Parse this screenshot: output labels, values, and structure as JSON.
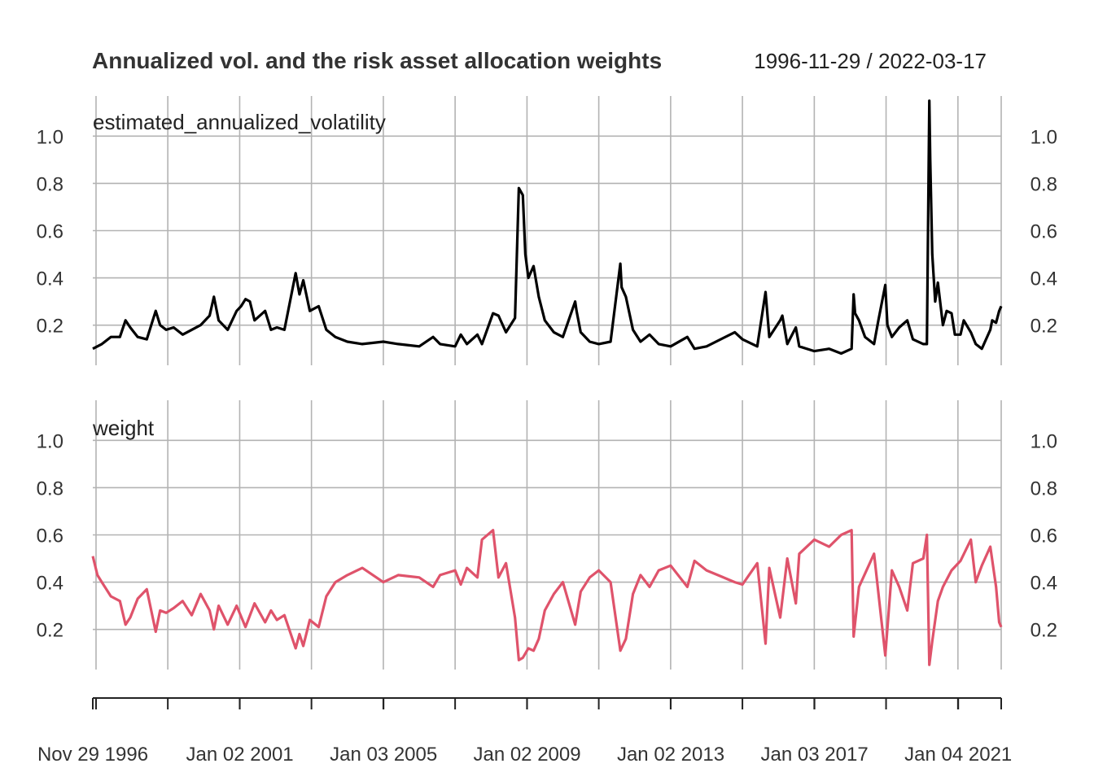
{
  "chart_data": {
    "type": "line",
    "title": "Annualized vol. and the risk asset allocation weights",
    "date_range": "1996-11-29 / 2022-03-17",
    "x_start": "1996-11-29",
    "x_end": "2022-03-17",
    "x_tick_labels": [
      "Nov 29 1996",
      "Jan 02 2001",
      "Jan 03 2005",
      "Jan 02 2009",
      "Jan 02 2013",
      "Jan 03 2017",
      "Jan 04 2021"
    ],
    "x_tick_dates": [
      "1996-11-29",
      "2001-01-02",
      "2005-01-03",
      "2009-01-02",
      "2013-01-02",
      "2017-01-03",
      "2021-01-04"
    ],
    "y_tick_labels": [
      "0.2",
      "0.4",
      "0.6",
      "0.8",
      "1.0"
    ],
    "grid": true,
    "panels": [
      {
        "label": "estimated_annualized_volatility",
        "color": "#000000",
        "ylim": [
          0.03,
          1.17
        ],
        "dates": [
          "1996-11-29",
          "1997-03-01",
          "1997-06-01",
          "1997-09-01",
          "1997-10-28",
          "1997-12-15",
          "1998-03-01",
          "1998-06-01",
          "1998-08-31",
          "1998-10-15",
          "1998-12-15",
          "1999-03-01",
          "1999-06-01",
          "1999-09-01",
          "1999-12-01",
          "2000-03-01",
          "2000-04-14",
          "2000-06-01",
          "2000-09-01",
          "2000-12-01",
          "2001-01-15",
          "2001-03-01",
          "2001-04-15",
          "2001-06-01",
          "2001-09-17",
          "2001-11-15",
          "2002-01-15",
          "2002-04-01",
          "2002-07-24",
          "2002-09-01",
          "2002-10-10",
          "2002-12-15",
          "2003-03-15",
          "2003-06-01",
          "2003-09-01",
          "2004-01-01",
          "2004-06-01",
          "2005-01-01",
          "2005-06-01",
          "2006-01-01",
          "2006-05-22",
          "2006-08-01",
          "2007-01-01",
          "2007-02-28",
          "2007-05-01",
          "2007-08-16",
          "2007-10-01",
          "2008-01-22",
          "2008-03-17",
          "2008-06-01",
          "2008-09-01",
          "2008-10-10",
          "2008-11-20",
          "2008-12-15",
          "2009-01-15",
          "2009-03-09",
          "2009-05-01",
          "2009-07-01",
          "2009-10-01",
          "2010-01-01",
          "2010-05-06",
          "2010-05-20",
          "2010-07-01",
          "2010-10-01",
          "2011-01-01",
          "2011-05-01",
          "2011-08-08",
          "2011-08-22",
          "2011-10-04",
          "2011-12-15",
          "2012-03-01",
          "2012-06-01",
          "2012-09-01",
          "2013-01-01",
          "2013-06-20",
          "2013-09-01",
          "2014-01-01",
          "2014-10-15",
          "2015-01-01",
          "2015-06-01",
          "2015-08-24",
          "2015-10-01",
          "2016-01-20",
          "2016-02-11",
          "2016-04-01",
          "2016-06-27",
          "2016-08-01",
          "2017-01-01",
          "2017-06-01",
          "2017-10-01",
          "2018-01-15",
          "2018-02-05",
          "2018-02-20",
          "2018-04-01",
          "2018-06-01",
          "2018-09-01",
          "2018-10-15",
          "2018-12-24",
          "2019-01-15",
          "2019-03-01",
          "2019-05-15",
          "2019-08-05",
          "2019-10-01",
          "2020-01-15",
          "2020-02-20",
          "2020-03-16",
          "2020-03-25",
          "2020-04-15",
          "2020-05-15",
          "2020-06-11",
          "2020-08-01",
          "2020-09-08",
          "2020-10-28",
          "2020-12-01",
          "2021-01-27",
          "2021-03-01",
          "2021-05-12",
          "2021-07-01",
          "2021-09-01",
          "2021-11-26",
          "2021-12-15",
          "2022-01-24",
          "2022-02-24",
          "2022-03-17"
        ],
        "values": [
          0.1,
          0.12,
          0.15,
          0.15,
          0.22,
          0.19,
          0.15,
          0.14,
          0.26,
          0.2,
          0.18,
          0.19,
          0.16,
          0.18,
          0.2,
          0.24,
          0.32,
          0.22,
          0.18,
          0.26,
          0.28,
          0.31,
          0.3,
          0.22,
          0.26,
          0.18,
          0.19,
          0.18,
          0.42,
          0.33,
          0.39,
          0.26,
          0.28,
          0.18,
          0.15,
          0.13,
          0.12,
          0.13,
          0.12,
          0.11,
          0.15,
          0.12,
          0.11,
          0.16,
          0.12,
          0.16,
          0.12,
          0.25,
          0.24,
          0.17,
          0.23,
          0.78,
          0.75,
          0.5,
          0.4,
          0.45,
          0.32,
          0.22,
          0.17,
          0.15,
          0.3,
          0.26,
          0.17,
          0.13,
          0.12,
          0.13,
          0.46,
          0.36,
          0.32,
          0.18,
          0.13,
          0.16,
          0.12,
          0.11,
          0.15,
          0.1,
          0.11,
          0.17,
          0.14,
          0.11,
          0.34,
          0.15,
          0.22,
          0.24,
          0.12,
          0.19,
          0.11,
          0.09,
          0.1,
          0.08,
          0.1,
          0.33,
          0.25,
          0.22,
          0.15,
          0.12,
          0.22,
          0.37,
          0.2,
          0.15,
          0.19,
          0.22,
          0.14,
          0.12,
          0.12,
          1.15,
          0.9,
          0.5,
          0.3,
          0.38,
          0.2,
          0.26,
          0.25,
          0.16,
          0.16,
          0.22,
          0.17,
          0.12,
          0.1,
          0.18,
          0.22,
          0.21,
          0.26,
          0.28
        ]
      },
      {
        "label": "weight",
        "color": "#DF536B",
        "ylim": [
          0.03,
          1.17
        ],
        "dates": [
          "1996-11-29",
          "1997-01-15",
          "1997-03-01",
          "1997-06-01",
          "1997-09-01",
          "1997-10-28",
          "1997-12-15",
          "1998-03-01",
          "1998-06-01",
          "1998-08-31",
          "1998-10-15",
          "1998-12-15",
          "1999-03-01",
          "1999-06-01",
          "1999-09-01",
          "1999-12-01",
          "2000-03-01",
          "2000-04-14",
          "2000-06-01",
          "2000-09-01",
          "2000-12-01",
          "2001-03-01",
          "2001-06-01",
          "2001-09-17",
          "2001-11-15",
          "2002-01-15",
          "2002-04-01",
          "2002-07-24",
          "2002-09-01",
          "2002-10-10",
          "2002-12-15",
          "2003-03-15",
          "2003-06-01",
          "2003-09-01",
          "2004-01-01",
          "2004-06-01",
          "2005-01-01",
          "2005-06-01",
          "2006-01-01",
          "2006-05-22",
          "2006-08-01",
          "2007-01-01",
          "2007-02-28",
          "2007-05-01",
          "2007-08-16",
          "2007-10-01",
          "2008-01-22",
          "2008-03-17",
          "2008-06-01",
          "2008-09-01",
          "2008-10-10",
          "2008-11-20",
          "2009-01-15",
          "2009-03-09",
          "2009-05-01",
          "2009-07-01",
          "2009-10-01",
          "2010-01-01",
          "2010-05-06",
          "2010-07-01",
          "2010-10-01",
          "2011-01-01",
          "2011-05-01",
          "2011-08-08",
          "2011-10-04",
          "2011-12-15",
          "2012-03-01",
          "2012-06-01",
          "2012-09-01",
          "2013-01-01",
          "2013-06-20",
          "2013-09-01",
          "2014-01-01",
          "2014-10-15",
          "2015-01-01",
          "2015-06-01",
          "2015-08-24",
          "2015-10-01",
          "2016-01-20",
          "2016-04-01",
          "2016-06-27",
          "2016-08-01",
          "2017-01-01",
          "2017-06-01",
          "2017-10-01",
          "2018-01-15",
          "2018-02-05",
          "2018-04-01",
          "2018-09-01",
          "2018-12-24",
          "2019-03-01",
          "2019-05-15",
          "2019-08-05",
          "2019-10-01",
          "2020-01-15",
          "2020-02-20",
          "2020-03-16",
          "2020-04-15",
          "2020-06-11",
          "2020-08-01",
          "2020-10-28",
          "2021-01-27",
          "2021-05-12",
          "2021-07-01",
          "2021-09-01",
          "2021-11-26",
          "2022-01-24",
          "2022-02-24",
          "2022-03-17"
        ],
        "values": [
          0.51,
          0.43,
          0.4,
          0.34,
          0.32,
          0.22,
          0.25,
          0.33,
          0.37,
          0.19,
          0.28,
          0.27,
          0.29,
          0.32,
          0.26,
          0.35,
          0.28,
          0.2,
          0.3,
          0.22,
          0.3,
          0.21,
          0.31,
          0.23,
          0.28,
          0.24,
          0.26,
          0.12,
          0.18,
          0.13,
          0.24,
          0.21,
          0.34,
          0.4,
          0.43,
          0.46,
          0.4,
          0.43,
          0.42,
          0.38,
          0.43,
          0.45,
          0.39,
          0.46,
          0.42,
          0.58,
          0.62,
          0.42,
          0.48,
          0.25,
          0.07,
          0.08,
          0.12,
          0.11,
          0.16,
          0.28,
          0.35,
          0.4,
          0.22,
          0.36,
          0.42,
          0.45,
          0.4,
          0.11,
          0.16,
          0.35,
          0.43,
          0.38,
          0.45,
          0.47,
          0.38,
          0.49,
          0.45,
          0.4,
          0.39,
          0.48,
          0.14,
          0.46,
          0.25,
          0.5,
          0.31,
          0.52,
          0.58,
          0.55,
          0.6,
          0.62,
          0.17,
          0.38,
          0.52,
          0.09,
          0.45,
          0.38,
          0.28,
          0.48,
          0.5,
          0.6,
          0.05,
          0.15,
          0.32,
          0.38,
          0.45,
          0.49,
          0.58,
          0.4,
          0.47,
          0.55,
          0.38,
          0.23,
          0.21
        ]
      }
    ]
  }
}
